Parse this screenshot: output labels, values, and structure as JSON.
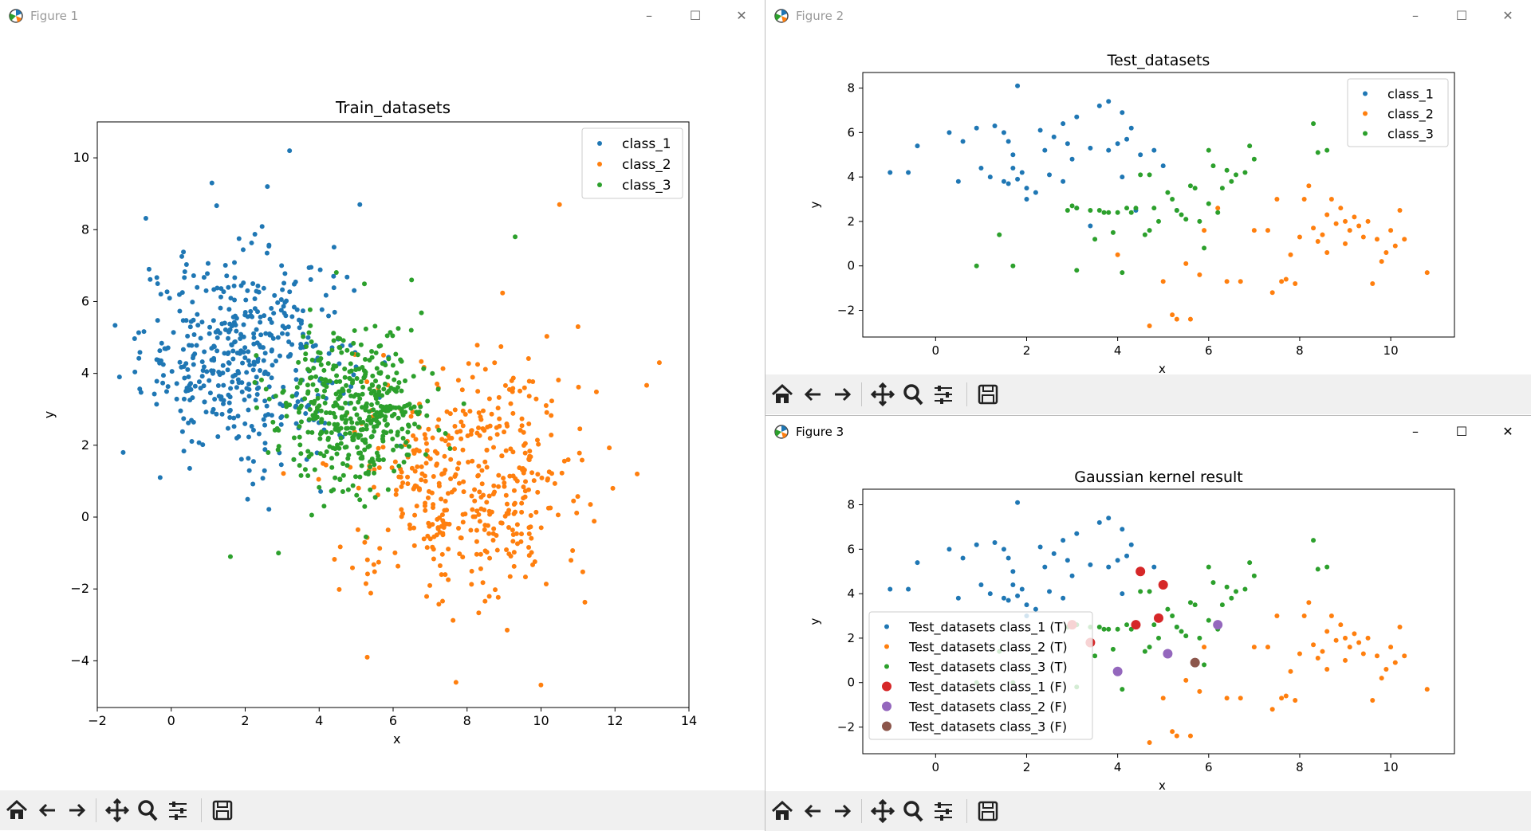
{
  "windows": [
    {
      "id": "fig1",
      "title": "Figure 1",
      "controls": {
        "minimize": "–",
        "maximize": "☐",
        "close": "✕"
      }
    },
    {
      "id": "fig2",
      "title": "Figure 2",
      "controls": {
        "minimize": "–",
        "maximize": "☐",
        "close": "✕"
      }
    },
    {
      "id": "fig3",
      "title": "Figure 3",
      "controls": {
        "minimize": "–",
        "maximize": "☐",
        "close": "✕"
      }
    }
  ],
  "toolbar": {
    "tools": [
      "home-icon",
      "back-icon",
      "forward-icon",
      "pan-icon",
      "zoom-icon",
      "configure-subplots-icon",
      "save-icon"
    ]
  },
  "colors": {
    "class_1": "#1f77b4",
    "class_2": "#ff7f0e",
    "class_3": "#2ca02c",
    "false_1": "#d62728",
    "false_2": "#9467bd",
    "false_3": "#8c564b"
  },
  "chart_data": [
    {
      "type": "scatter",
      "title": "Train_datasets",
      "xlabel": "x",
      "ylabel": "y",
      "xlim": [
        -2,
        14
      ],
      "ylim": [
        -5.3,
        11
      ],
      "xticks": [
        "−2",
        "0",
        "2",
        "4",
        "6",
        "8",
        "10",
        "12",
        "14"
      ],
      "yticks": [
        "−4",
        "−2",
        "0",
        "2",
        "4",
        "6",
        "8",
        "10"
      ],
      "legend": [
        "class_1",
        "class_2",
        "class_3"
      ],
      "legend_position": "top-right",
      "series": [
        {
          "name": "class_1",
          "centroid": [
            2,
            4.5
          ],
          "spread": [
            1.4,
            1.4
          ],
          "count": 450,
          "notable_points": [
            [
              3.2,
              10.2
            ],
            [
              1.1,
              9.3
            ],
            [
              2.6,
              9.2
            ],
            [
              5.1,
              8.7
            ],
            [
              -1.3,
              1.8
            ],
            [
              -0.3,
              1.1
            ],
            [
              -1.4,
              3.9
            ],
            [
              -0.6,
              6.9
            ]
          ]
        },
        {
          "name": "class_2",
          "centroid": [
            8,
            1
          ],
          "spread": [
            1.6,
            1.6
          ],
          "count": 450,
          "notable_points": [
            [
              10.5,
              8.7
            ],
            [
              13.2,
              4.3
            ],
            [
              12.6,
              1.2
            ],
            [
              5.3,
              -3.9
            ],
            [
              7.7,
              -4.6
            ],
            [
              11.0,
              5.3
            ]
          ]
        },
        {
          "name": "class_3",
          "centroid": [
            5,
            3
          ],
          "spread": [
            1,
            1.1
          ],
          "count": 450,
          "notable_points": [
            [
              9.3,
              7.8
            ],
            [
              1.6,
              -1.1
            ],
            [
              6.5,
              6.6
            ],
            [
              2.9,
              -1.0
            ]
          ]
        }
      ]
    },
    {
      "type": "scatter",
      "title": "Test_datasets",
      "xlabel": "x",
      "ylabel": "y",
      "xlim": [
        -1.6,
        11.4
      ],
      "ylim": [
        -3.2,
        8.7
      ],
      "xticks": [
        "0",
        "2",
        "4",
        "6",
        "8",
        "10"
      ],
      "yticks": [
        "−2",
        "0",
        "2",
        "4",
        "6",
        "8"
      ],
      "legend": [
        "class_1",
        "class_2",
        "class_3"
      ],
      "legend_position": "top-right",
      "series": [
        {
          "name": "class_1",
          "points": [
            [
              -1.0,
              4.2
            ],
            [
              -0.6,
              4.2
            ],
            [
              -0.4,
              5.4
            ],
            [
              0.3,
              6.0
            ],
            [
              0.6,
              5.6
            ],
            [
              0.5,
              3.8
            ],
            [
              1.0,
              4.4
            ],
            [
              0.9,
              6.2
            ],
            [
              1.2,
              4.0
            ],
            [
              1.3,
              6.3
            ],
            [
              1.5,
              6.0
            ],
            [
              1.6,
              5.6
            ],
            [
              1.6,
              3.7
            ],
            [
              1.7,
              4.4
            ],
            [
              1.8,
              3.9
            ],
            [
              1.9,
              4.2
            ],
            [
              1.8,
              8.1
            ],
            [
              1.5,
              3.8
            ],
            [
              2.0,
              3.5
            ],
            [
              1.7,
              5.0
            ],
            [
              2.3,
              6.1
            ],
            [
              2.4,
              5.2
            ],
            [
              2.2,
              3.3
            ],
            [
              2.6,
              5.8
            ],
            [
              2.5,
              4.1
            ],
            [
              2.8,
              3.8
            ],
            [
              2.0,
              3.0
            ],
            [
              2.8,
              6.4
            ],
            [
              2.9,
              5.5
            ],
            [
              3.0,
              4.8
            ],
            [
              3.1,
              6.7
            ],
            [
              3.4,
              5.3
            ],
            [
              3.6,
              7.2
            ],
            [
              3.8,
              7.4
            ],
            [
              4.1,
              6.9
            ],
            [
              4.0,
              5.5
            ],
            [
              4.2,
              5.7
            ],
            [
              4.3,
              6.2
            ],
            [
              4.1,
              4.0
            ],
            [
              4.5,
              5.0
            ],
            [
              4.8,
              5.2
            ],
            [
              3.8,
              5.2
            ],
            [
              4.4,
              2.5
            ],
            [
              5.0,
              4.5
            ],
            [
              3.1,
              2.6
            ],
            [
              3.4,
              1.8
            ],
            [
              5.3,
              2.5
            ]
          ]
        },
        {
          "name": "class_2",
          "points": [
            [
              4.0,
              0.5
            ],
            [
              4.7,
              -2.7
            ],
            [
              5.2,
              -2.2
            ],
            [
              5.3,
              -2.4
            ],
            [
              5.0,
              -0.7
            ],
            [
              5.5,
              0.1
            ],
            [
              5.8,
              -0.4
            ],
            [
              5.9,
              1.6
            ],
            [
              6.2,
              2.6
            ],
            [
              6.4,
              -0.7
            ],
            [
              6.7,
              -0.7
            ],
            [
              7.0,
              1.6
            ],
            [
              7.3,
              1.6
            ],
            [
              7.5,
              3.0
            ],
            [
              7.4,
              -1.2
            ],
            [
              7.6,
              -0.7
            ],
            [
              7.7,
              -0.6
            ],
            [
              7.8,
              0.5
            ],
            [
              7.9,
              -0.8
            ],
            [
              8.0,
              1.3
            ],
            [
              8.1,
              3.0
            ],
            [
              8.2,
              3.6
            ],
            [
              8.3,
              1.7
            ],
            [
              8.4,
              1.1
            ],
            [
              8.5,
              1.4
            ],
            [
              8.6,
              2.3
            ],
            [
              8.6,
              0.6
            ],
            [
              8.7,
              3.0
            ],
            [
              8.8,
              1.9
            ],
            [
              8.9,
              2.6
            ],
            [
              9.0,
              1.0
            ],
            [
              9.1,
              1.6
            ],
            [
              9.2,
              2.2
            ],
            [
              9.3,
              1.8
            ],
            [
              9.4,
              1.3
            ],
            [
              9.5,
              2.0
            ],
            [
              9.6,
              -0.8
            ],
            [
              9.7,
              1.2
            ],
            [
              9.8,
              0.2
            ],
            [
              9.9,
              0.6
            ],
            [
              10.0,
              1.6
            ],
            [
              10.1,
              0.9
            ],
            [
              10.2,
              2.5
            ],
            [
              10.3,
              1.2
            ],
            [
              10.8,
              -0.3
            ],
            [
              9.0,
              2.0
            ],
            [
              5.6,
              -2.4
            ]
          ]
        },
        {
          "name": "class_3",
          "points": [
            [
              0.9,
              0.0
            ],
            [
              1.4,
              1.4
            ],
            [
              1.7,
              0.0
            ],
            [
              3.0,
              2.7
            ],
            [
              3.1,
              2.6
            ],
            [
              3.1,
              -0.2
            ],
            [
              3.4,
              2.5
            ],
            [
              3.5,
              1.2
            ],
            [
              3.6,
              2.5
            ],
            [
              3.7,
              2.4
            ],
            [
              3.8,
              2.4
            ],
            [
              3.9,
              1.5
            ],
            [
              4.0,
              2.4
            ],
            [
              4.1,
              -0.3
            ],
            [
              4.2,
              2.6
            ],
            [
              4.3,
              2.4
            ],
            [
              4.4,
              2.6
            ],
            [
              4.5,
              4.1
            ],
            [
              4.6,
              1.4
            ],
            [
              4.7,
              4.1
            ],
            [
              4.7,
              1.6
            ],
            [
              4.8,
              2.6
            ],
            [
              4.9,
              2.0
            ],
            [
              5.1,
              3.3
            ],
            [
              5.2,
              3.0
            ],
            [
              5.3,
              2.5
            ],
            [
              5.4,
              2.3
            ],
            [
              5.5,
              2.1
            ],
            [
              5.6,
              3.6
            ],
            [
              5.7,
              3.5
            ],
            [
              5.8,
              2.0
            ],
            [
              5.9,
              0.8
            ],
            [
              6.0,
              2.8
            ],
            [
              6.1,
              4.5
            ],
            [
              6.2,
              2.4
            ],
            [
              6.3,
              3.5
            ],
            [
              6.4,
              4.3
            ],
            [
              6.5,
              3.8
            ],
            [
              6.6,
              4.1
            ],
            [
              6.8,
              4.2
            ],
            [
              6.9,
              5.4
            ],
            [
              7.0,
              4.8
            ],
            [
              8.3,
              6.4
            ],
            [
              8.4,
              5.1
            ],
            [
              8.6,
              5.2
            ],
            [
              6.0,
              5.2
            ],
            [
              2.9,
              2.5
            ]
          ]
        }
      ]
    },
    {
      "type": "scatter",
      "title": "Gaussian kernel result",
      "xlabel": "x",
      "ylabel": "y",
      "xlim": [
        -1.6,
        11.4
      ],
      "ylim": [
        -3.2,
        8.7
      ],
      "xticks": [
        "0",
        "2",
        "4",
        "6",
        "8",
        "10"
      ],
      "yticks": [
        "−2",
        "0",
        "2",
        "4",
        "6",
        "8"
      ],
      "legend": [
        "Test_datasets class_1 (T)",
        "Test_datasets class_2 (T)",
        "Test_datasets class_3 (T)",
        "Test_datasets class_1 (F)",
        "Test_datasets class_2 (F)",
        "Test_datasets class_3 (F)"
      ],
      "legend_position": "lower-left",
      "false_points": [
        {
          "name": "Test_datasets class_1 (F)",
          "points": [
            [
              4.5,
              5.0
            ],
            [
              5.0,
              4.4
            ],
            [
              4.4,
              2.6
            ],
            [
              4.9,
              2.9
            ],
            [
              3.0,
              2.6
            ],
            [
              3.4,
              1.8
            ]
          ]
        },
        {
          "name": "Test_datasets class_2 (F)",
          "points": [
            [
              4.0,
              0.5
            ],
            [
              5.1,
              1.3
            ],
            [
              6.2,
              2.6
            ]
          ]
        },
        {
          "name": "Test_datasets class_3 (F)",
          "points": [
            [
              5.7,
              0.9
            ]
          ]
        }
      ]
    }
  ]
}
